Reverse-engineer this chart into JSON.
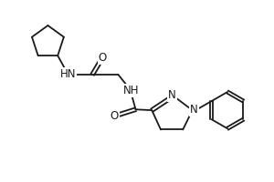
{
  "background_color": "#ffffff",
  "line_color": "#1a1a1a",
  "line_width": 1.3,
  "font_size": 8.5,
  "fig_width": 3.0,
  "fig_height": 2.0,
  "dpi": 100,
  "xlim": [
    0,
    10
  ],
  "ylim": [
    0,
    6.67
  ]
}
